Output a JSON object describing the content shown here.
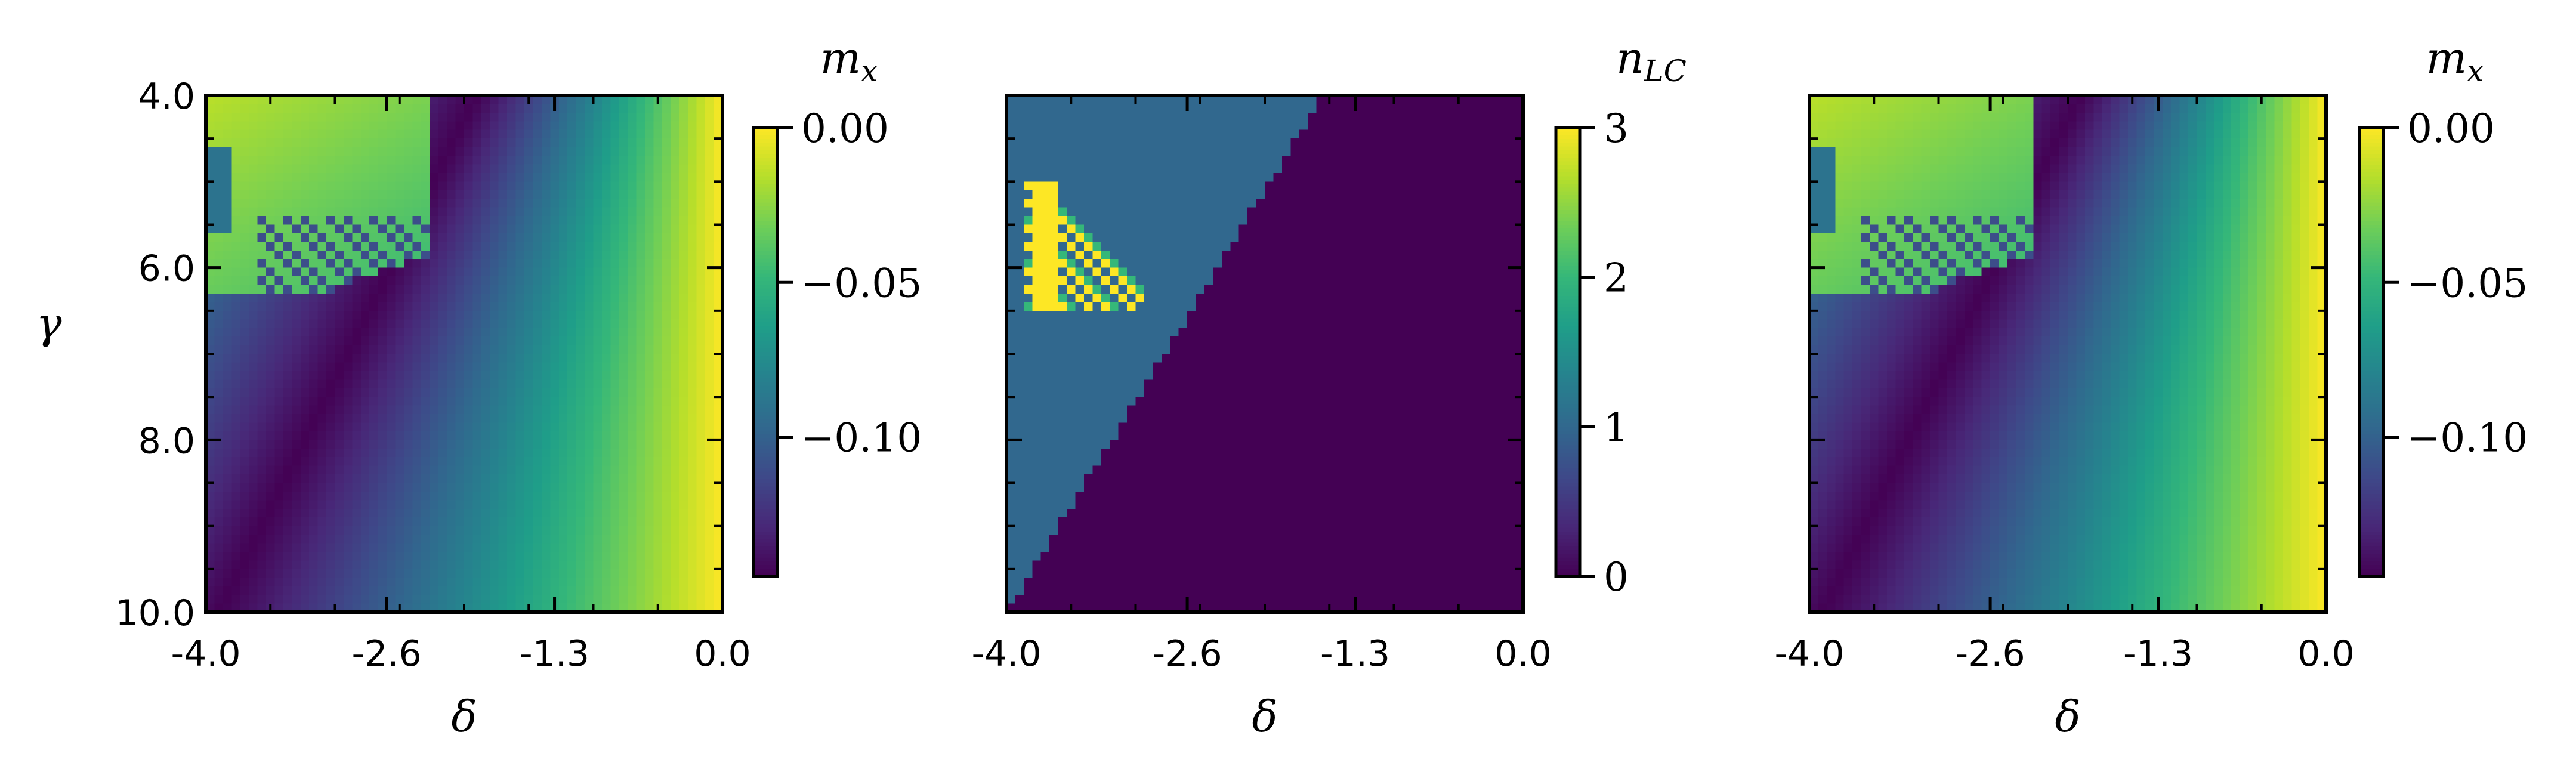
{
  "colors": {
    "viridis_stops": [
      "#440154",
      "#482878",
      "#3e4989",
      "#31688e",
      "#26828e",
      "#1f9e89",
      "#35b779",
      "#6ece58",
      "#b5de2b",
      "#fde725"
    ]
  },
  "chart_data": [
    {
      "type": "heatmap",
      "title": "",
      "xlabel": "δ",
      "ylabel": "γ",
      "xlim": [
        -4.0,
        0.0
      ],
      "ylim": [
        10.0,
        4.0
      ],
      "xticks": [
        -4.0,
        -2.6,
        -1.3,
        0.0
      ],
      "xtick_labels": [
        "-4.0",
        "-2.6",
        "-1.3",
        "0.0"
      ],
      "yticks": [
        4.0,
        6.0,
        8.0,
        10.0
      ],
      "ytick_labels": [
        "4.0",
        "6.0",
        "8.0",
        "10.0"
      ],
      "grid_rows": 60,
      "grid_cols": 60,
      "colorbar": {
        "label": "m",
        "label_sub": "x",
        "range": [
          -0.145,
          0.0
        ],
        "ticks": [
          0.0,
          -0.05,
          -0.1
        ],
        "tick_labels": [
          "0.00",
          "−0.05",
          "−0.10"
        ]
      }
    },
    {
      "type": "heatmap",
      "title": "",
      "xlabel": "δ",
      "ylabel": "",
      "xlim": [
        -4.0,
        0.0
      ],
      "ylim": [
        10.0,
        4.0
      ],
      "xticks": [
        -4.0,
        -2.6,
        -1.3,
        0.0
      ],
      "xtick_labels": [
        "-4.0",
        "-2.6",
        "-1.3",
        "0.0"
      ],
      "yticks": [
        4.0,
        6.0,
        8.0,
        10.0
      ],
      "ytick_labels": [],
      "grid_rows": 60,
      "grid_cols": 60,
      "colorbar": {
        "label": "n",
        "label_sub": "LC",
        "range": [
          0,
          3
        ],
        "ticks": [
          3,
          2,
          1,
          0
        ],
        "tick_labels": [
          "3",
          "2",
          "1",
          "0"
        ]
      }
    },
    {
      "type": "heatmap",
      "title": "",
      "xlabel": "δ",
      "ylabel": "",
      "xlim": [
        -4.0,
        0.0
      ],
      "ylim": [
        10.0,
        4.0
      ],
      "xticks": [
        -4.0,
        -2.6,
        -1.3,
        0.0
      ],
      "xtick_labels": [
        "-4.0",
        "-2.6",
        "-1.3",
        "0.0"
      ],
      "yticks": [
        4.0,
        6.0,
        8.0,
        10.0
      ],
      "ytick_labels": [],
      "grid_rows": 60,
      "grid_cols": 60,
      "colorbar": {
        "label": "m",
        "label_sub": "x",
        "range": [
          -0.145,
          0.0
        ],
        "ticks": [
          0.0,
          -0.05,
          -0.1
        ],
        "tick_labels": [
          "0.00",
          "−0.05",
          "−0.10"
        ]
      }
    }
  ]
}
